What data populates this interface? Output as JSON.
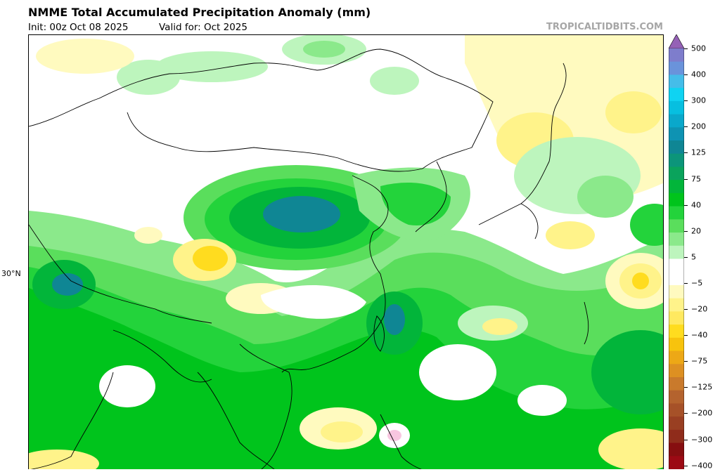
{
  "header": {
    "title": "NMME Total Accumulated Precipitation Anomaly (mm)",
    "init": "Init: 00z Oct 08 2025",
    "valid": "Valid for: Oct 2025",
    "credit": "TROPICALTIDBITS.COM"
  },
  "axis": {
    "lat_label": "30°N"
  },
  "colorbar": {
    "labels": [
      "500",
      "400",
      "300",
      "200",
      "125",
      "75",
      "40",
      "20",
      "5",
      "−5",
      "−20",
      "−40",
      "−75",
      "−125",
      "−200",
      "−300",
      "−400"
    ],
    "colors": [
      "#9561b6",
      "#7e7dcc",
      "#6a93db",
      "#45bde9",
      "#0fd3f2",
      "#07bfe0",
      "#0aa8cb",
      "#0e93b3",
      "#0f8694",
      "#0c957a",
      "#0aa35c",
      "#02b53a",
      "#00c41c",
      "#23d33b",
      "#5ade5c",
      "#8be98b",
      "#bdf5bd",
      "#ffffff",
      "#ffffff",
      "#fffabf",
      "#fff38a",
      "#ffe960",
      "#ffdc1f",
      "#f7c30d",
      "#eda816",
      "#dd9022",
      "#c97a2c",
      "#b4632e",
      "#a65128",
      "#993f22",
      "#8f2c1b",
      "#860e10",
      "#9c0a14"
    ]
  },
  "map": {
    "colors": {
      "light_green": "#bdf5bd",
      "mid_green": "#8be98b",
      "green": "#5ade5c",
      "bright_green": "#23d33b",
      "deep_green": "#00c41c",
      "dark_green": "#02b53a",
      "teal": "#0f8694",
      "pale_yellow": "#fffabf",
      "yellow": "#fff38a",
      "gold": "#ffdc1f",
      "pink": "#f7c6e0"
    }
  }
}
